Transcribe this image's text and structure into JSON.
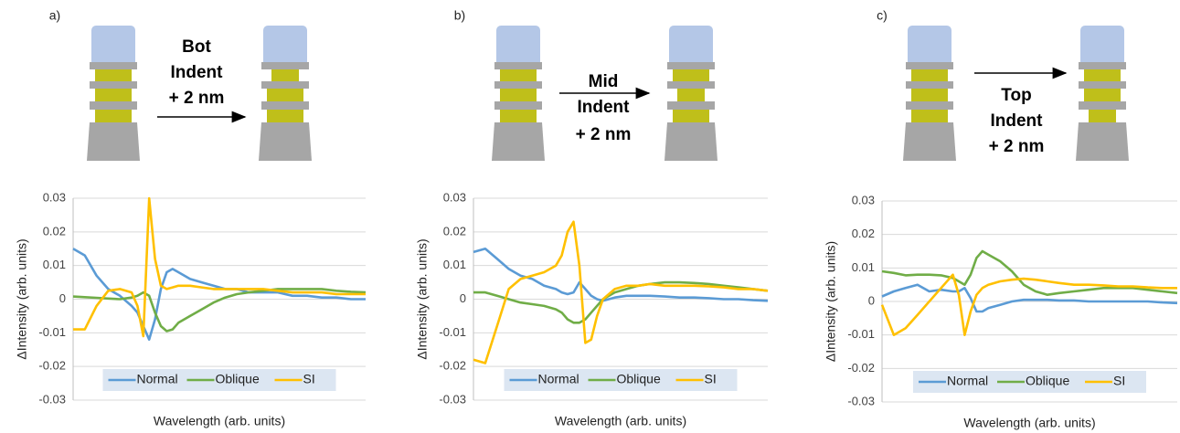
{
  "panels": [
    {
      "label": "a)",
      "caption": [
        "Bot",
        "Indent",
        "+ 2 nm"
      ]
    },
    {
      "label": "b)",
      "caption": [
        "Mid",
        "Indent",
        "+ 2 nm"
      ]
    },
    {
      "label": "c)",
      "caption": [
        "Top",
        "Indent",
        "+ 2 nm"
      ]
    }
  ],
  "chart_data": [
    {
      "type": "line",
      "y_label": "ΔIntensity (arb. units)",
      "x_label": "Wavelength (arb. units)",
      "x": [
        0,
        4,
        8,
        12,
        16,
        20,
        22,
        24,
        26,
        28,
        30,
        32,
        34,
        36,
        40,
        44,
        48,
        52,
        56,
        60,
        65,
        70,
        75,
        80,
        85,
        90,
        95,
        100
      ],
      "xlim": [
        0,
        100
      ],
      "ylim": [
        -0.03,
        0.03
      ],
      "yticks": [
        -0.03,
        -0.02,
        -0.01,
        0,
        0.01,
        0.02,
        0.03
      ],
      "grid": true,
      "series": [
        {
          "name": "Normal",
          "color": "#5b9bd5",
          "values": [
            0.015,
            0.013,
            0.007,
            0.003,
            0.001,
            -0.002,
            -0.004,
            -0.008,
            -0.012,
            -0.006,
            0.003,
            0.008,
            0.009,
            0.008,
            0.006,
            0.005,
            0.004,
            0.003,
            0.003,
            0.002,
            0.002,
            0.002,
            0.001,
            0.001,
            0.0005,
            0.0005,
            0,
            0
          ]
        },
        {
          "name": "Oblique",
          "color": "#70ad47",
          "values": [
            0.0008,
            0.0006,
            0.0004,
            0.0002,
            0,
            0.0005,
            0.001,
            0.002,
            0.001,
            -0.004,
            -0.008,
            -0.0095,
            -0.009,
            -0.007,
            -0.005,
            -0.003,
            -0.001,
            0.0005,
            0.0015,
            0.002,
            0.0025,
            0.003,
            0.003,
            0.003,
            0.003,
            0.0025,
            0.0022,
            0.002
          ]
        },
        {
          "name": "SI",
          "color": "#ffc000",
          "values": [
            -0.009,
            -0.009,
            -0.002,
            0.0025,
            0.003,
            0.002,
            -0.002,
            -0.011,
            0.03,
            0.012,
            0.004,
            0.003,
            0.0035,
            0.004,
            0.004,
            0.0035,
            0.003,
            0.003,
            0.003,
            0.003,
            0.003,
            0.0025,
            0.002,
            0.002,
            0.002,
            0.0015,
            0.0015,
            0.0015
          ]
        }
      ]
    },
    {
      "type": "line",
      "y_label": "ΔIntensity (arb. units)",
      "x_label": "Wavelength (arb. units)",
      "x": [
        0,
        4,
        8,
        12,
        16,
        20,
        24,
        28,
        30,
        32,
        34,
        36,
        38,
        40,
        42,
        44,
        48,
        52,
        56,
        60,
        65,
        70,
        75,
        80,
        85,
        90,
        95,
        100
      ],
      "xlim": [
        0,
        100
      ],
      "ylim": [
        -0.03,
        0.03
      ],
      "yticks": [
        -0.03,
        -0.02,
        -0.01,
        0,
        0.01,
        0.02,
        0.03
      ],
      "grid": true,
      "series": [
        {
          "name": "Normal",
          "color": "#5b9bd5",
          "values": [
            0.014,
            0.015,
            0.012,
            0.009,
            0.007,
            0.006,
            0.004,
            0.003,
            0.002,
            0.0015,
            0.002,
            0.005,
            0.003,
            0.001,
            0,
            -0.0005,
            0.0005,
            0.001,
            0.001,
            0.001,
            0.0008,
            0.0005,
            0.0005,
            0.0003,
            0,
            0,
            -0.0003,
            -0.0005
          ]
        },
        {
          "name": "Oblique",
          "color": "#70ad47",
          "values": [
            0.002,
            0.002,
            0.001,
            0,
            -0.001,
            -0.0015,
            -0.002,
            -0.003,
            -0.004,
            -0.006,
            -0.007,
            -0.007,
            -0.006,
            -0.004,
            -0.002,
            0,
            0.002,
            0.003,
            0.004,
            0.0045,
            0.005,
            0.005,
            0.0048,
            0.0045,
            0.004,
            0.0035,
            0.003,
            0.0025
          ]
        },
        {
          "name": "SI",
          "color": "#ffc000",
          "values": [
            -0.018,
            -0.019,
            -0.008,
            0.003,
            0.006,
            0.007,
            0.008,
            0.01,
            0.013,
            0.02,
            0.023,
            0.01,
            -0.013,
            -0.012,
            -0.005,
            0,
            0.003,
            0.004,
            0.004,
            0.0045,
            0.004,
            0.004,
            0.004,
            0.0038,
            0.0035,
            0.003,
            0.003,
            0.0025
          ]
        }
      ]
    },
    {
      "type": "line",
      "y_label": "ΔIntensity (arb. units)",
      "x_label": "Wavelength (arb. units)",
      "x": [
        0,
        4,
        8,
        12,
        16,
        20,
        24,
        26,
        28,
        30,
        32,
        34,
        36,
        40,
        44,
        48,
        52,
        56,
        60,
        65,
        70,
        75,
        80,
        85,
        90,
        95,
        100
      ],
      "xlim": [
        0,
        100
      ],
      "ylim": [
        -0.03,
        0.03
      ],
      "yticks": [
        -0.03,
        -0.02,
        -0.01,
        0,
        0.01,
        0.02,
        0.03
      ],
      "grid": true,
      "series": [
        {
          "name": "Normal",
          "color": "#5b9bd5",
          "values": [
            0.0015,
            0.003,
            0.004,
            0.005,
            0.003,
            0.0035,
            0.003,
            0.003,
            0.004,
            0.001,
            -0.003,
            -0.003,
            -0.002,
            -0.001,
            0,
            0.0005,
            0.0005,
            0.0005,
            0.0003,
            0.0003,
            0,
            0,
            0,
            0,
            0,
            -0.0003,
            -0.0005
          ]
        },
        {
          "name": "Oblique",
          "color": "#70ad47",
          "values": [
            0.009,
            0.0085,
            0.0078,
            0.008,
            0.008,
            0.0078,
            0.007,
            0.006,
            0.005,
            0.008,
            0.013,
            0.015,
            0.014,
            0.012,
            0.009,
            0.005,
            0.003,
            0.002,
            0.0025,
            0.003,
            0.0035,
            0.004,
            0.004,
            0.004,
            0.0035,
            0.003,
            0.0025
          ]
        },
        {
          "name": "SI",
          "color": "#ffc000",
          "values": [
            -0.001,
            -0.01,
            -0.008,
            -0.004,
            0,
            0.004,
            0.008,
            0.002,
            -0.01,
            -0.003,
            0.002,
            0.004,
            0.005,
            0.006,
            0.0065,
            0.0068,
            0.0065,
            0.006,
            0.0055,
            0.005,
            0.005,
            0.0048,
            0.0045,
            0.0045,
            0.0042,
            0.004,
            0.004
          ]
        }
      ]
    }
  ]
}
